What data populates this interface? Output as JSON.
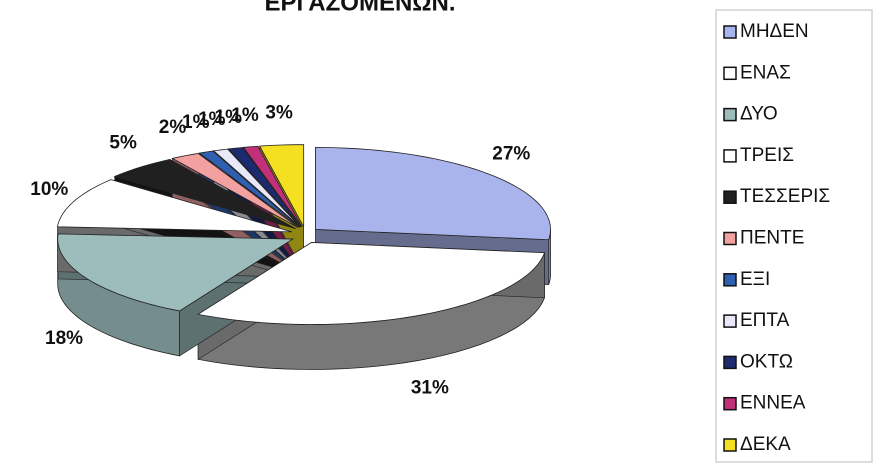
{
  "chart_data": {
    "type": "pie",
    "title": "ΕΡΓΑΖΟΜΕΝΩΝ.",
    "categories": [
      "ΜΗΔΕΝ",
      "ΕΝΑΣ",
      "ΔΥΟ",
      "ΤΡΕΙΣ",
      "ΤΕΣΣΕΡΙΣ",
      "ΠΕΝΤΕ",
      "ΕΞΙ",
      "ΕΠΤΑ",
      "ΟΚΤΩ",
      "ΕΝΝΕΑ",
      "ΔΕΚΑ"
    ],
    "values": [
      27,
      31,
      18,
      10,
      5,
      2,
      1,
      1,
      1,
      1,
      3
    ],
    "value_labels": [
      "27%",
      "31%",
      "18%",
      "10%",
      "5%",
      "2%",
      "1%",
      "1%",
      "1%",
      "1%",
      "3%"
    ],
    "colors": [
      "#a9b4ec",
      "#ffffff",
      "#9dbcbc",
      "#ffffff",
      "#202020",
      "#f2a0a0",
      "#2e5fb0",
      "#e8e8f8",
      "#1c2a70",
      "#c2307a",
      "#f4e020"
    ],
    "legend": "right"
  }
}
